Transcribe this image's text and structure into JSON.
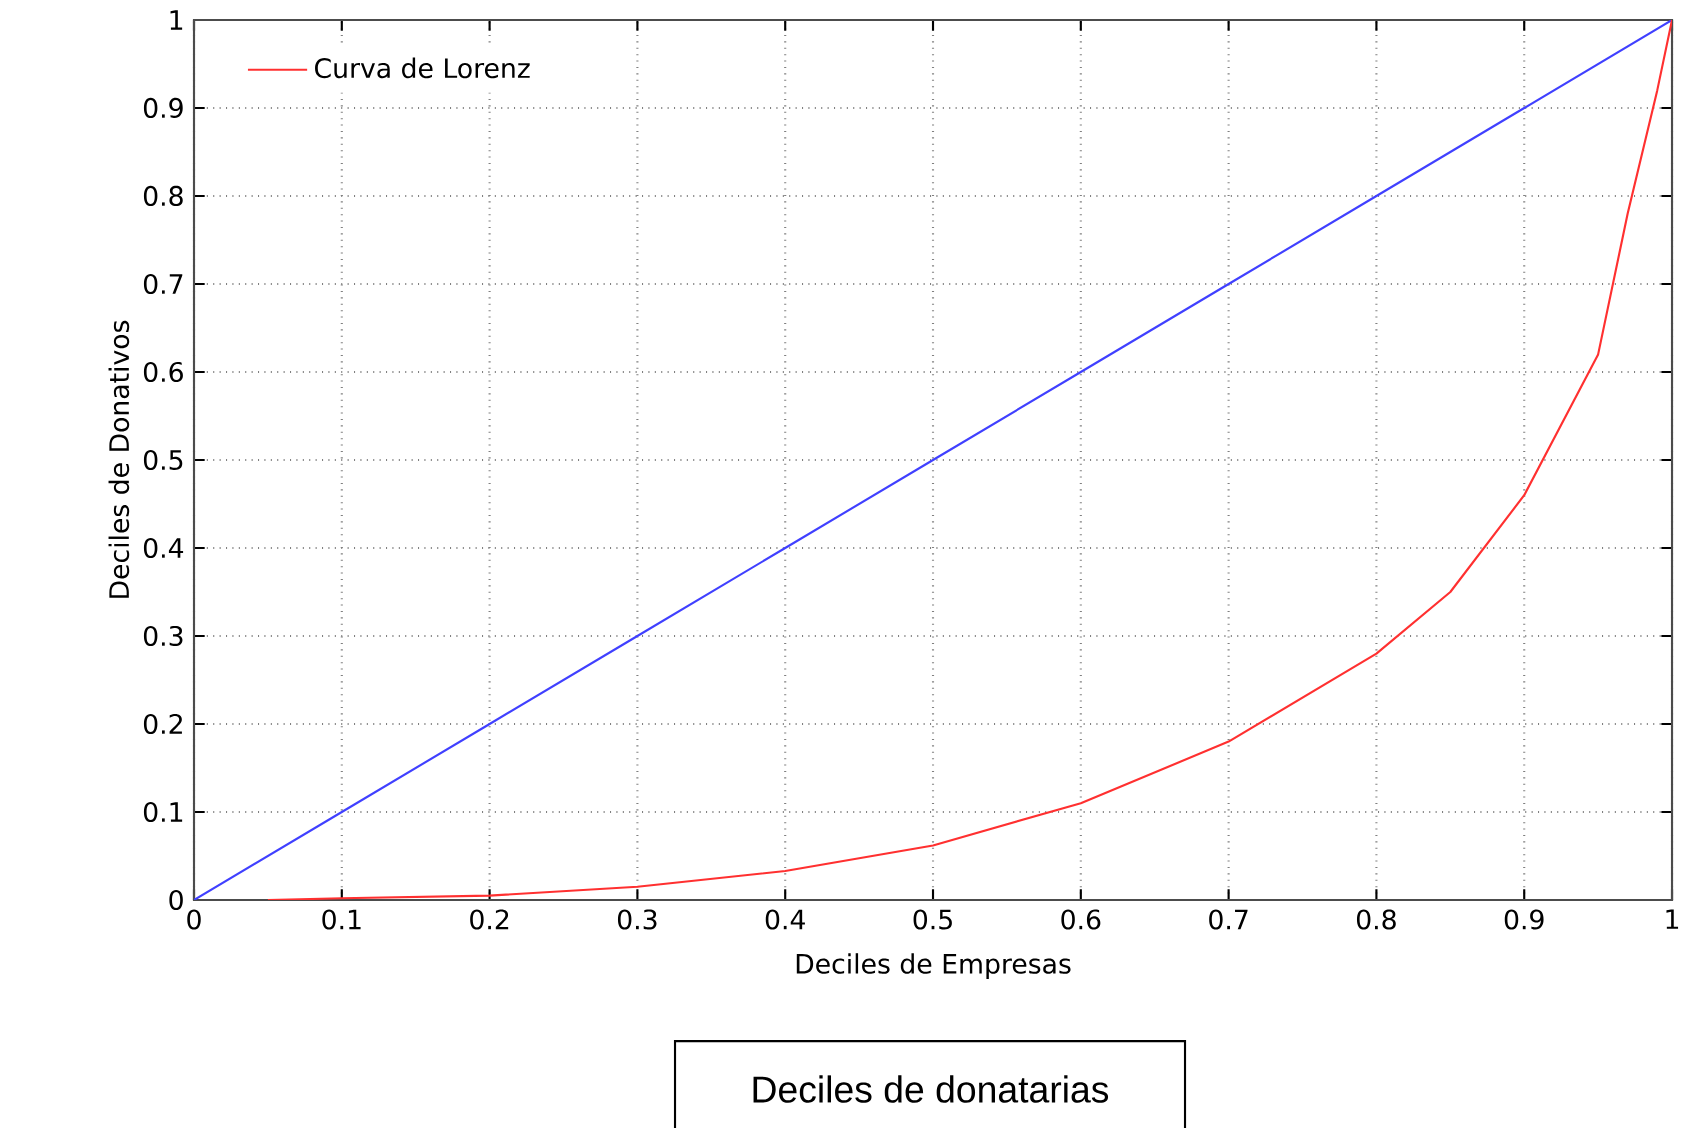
{
  "chart_data": {
    "type": "line",
    "xlabel": "Deciles de Empresas",
    "ylabel": "Deciles de Donativos",
    "x": [
      0,
      0.1,
      0.2,
      0.3,
      0.4,
      0.5,
      0.6,
      0.7,
      0.8,
      0.9,
      1
    ],
    "series": [
      {
        "color": "#4040ff",
        "values": [
          0,
          0.1,
          0.2,
          0.3,
          0.4,
          0.5,
          0.6,
          0.7,
          0.8,
          0.9,
          1
        ]
      },
      {
        "name": "Curva de Lorenz",
        "color": "#ff3030",
        "x": [
          0.05,
          0.1,
          0.2,
          0.3,
          0.4,
          0.5,
          0.6,
          0.7,
          0.8,
          0.85,
          0.9,
          0.95,
          0.97,
          0.99,
          1
        ],
        "values": [
          0,
          0.002,
          0.005,
          0.015,
          0.033,
          0.062,
          0.11,
          0.18,
          0.28,
          0.35,
          0.46,
          0.62,
          0.78,
          0.92,
          1
        ]
      }
    ],
    "xlim": [
      0,
      1
    ],
    "ylim": [
      0,
      1
    ],
    "xticks": [
      0,
      0.1,
      0.2,
      0.3,
      0.4,
      0.5,
      0.6,
      0.7,
      0.8,
      0.9,
      1
    ],
    "yticks": [
      0,
      0.1,
      0.2,
      0.3,
      0.4,
      0.5,
      0.6,
      0.7,
      0.8,
      0.9,
      1
    ],
    "grid": true,
    "legend": "top left",
    "marker": "none",
    "line_style": "solid",
    "annotations": [
      "Deciles de donatarias"
    ]
  }
}
